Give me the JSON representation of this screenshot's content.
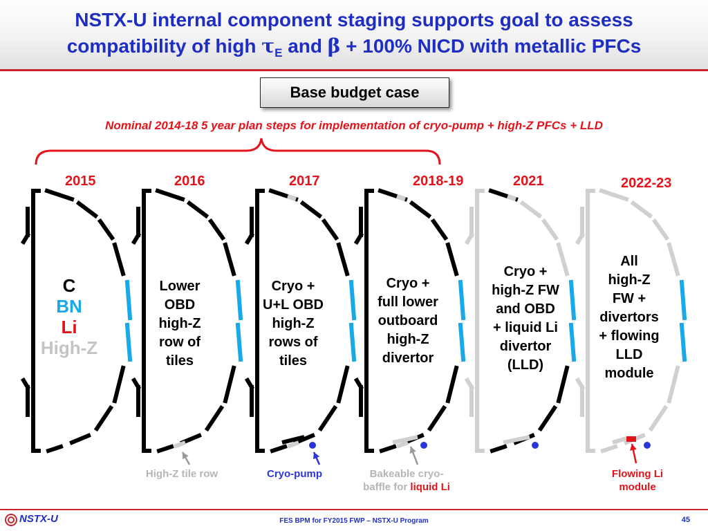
{
  "title": {
    "line1": "NSTX-U internal component staging supports goal to assess",
    "line2_prefix": "compatibility of high ",
    "tau": "τ",
    "tau_sub": "E",
    "and_word": " and ",
    "beta": "β",
    "line2_suffix": " + 100% NICD with metallic PFCs"
  },
  "base_budget_label": "Base budget case",
  "plan_text": "Nominal 2014-18 5 year plan steps for implementation of cryo-pump + high-Z PFCs + LLD",
  "colors": {
    "title_blue": "#1f2ec2",
    "red": "#e3131b",
    "tile_black": "#000000",
    "tile_gray": "#d0d0d0",
    "tile_cyan": "#19a9e6",
    "cryo_blue": "#2b36d6"
  },
  "years": [
    "2015",
    "2016",
    "2017",
    "2018-19",
    "2021",
    "2022-23"
  ],
  "stages": [
    {
      "lines": []
    },
    {
      "lines": [
        "Lower",
        "OBD",
        "high-Z",
        "row of",
        "tiles"
      ]
    },
    {
      "lines": [
        "Cryo +",
        "U+L OBD",
        "high-Z",
        "rows of",
        "tiles"
      ]
    },
    {
      "lines": [
        "Cryo +",
        "full lower",
        "outboard",
        "high-Z",
        "divertor"
      ]
    },
    {
      "lines": [
        "Cryo +",
        "high-Z FW",
        "and OBD",
        "+ liquid Li",
        "divertor",
        "(LLD)"
      ]
    },
    {
      "lines": [
        "All",
        "high-Z",
        "FW +",
        "divertors",
        "+ flowing",
        "LLD",
        "module"
      ]
    }
  ],
  "materials": [
    {
      "text": "C",
      "color": "#000000"
    },
    {
      "text": "BN",
      "color": "#19a9e6"
    },
    {
      "text": "Li",
      "color": "#e3131b"
    },
    {
      "text": "High-Z",
      "color": "#c4c4c4"
    }
  ],
  "captions": {
    "high_z_row": "High-Z tile row",
    "cryo_pump": "Cryo-pump",
    "baffle_line1": "Bakeable cryo-",
    "baffle_line2_prefix": "baffle for ",
    "baffle_line2_highlight": "liquid Li",
    "flowing_li_line1": "Flowing  Li",
    "flowing_li_line2": "module"
  },
  "footer": {
    "logo_text": "NSTX-U",
    "center_text": "FES BPM for FY2015 FWP – NSTX-U Program",
    "page_number": "45"
  }
}
